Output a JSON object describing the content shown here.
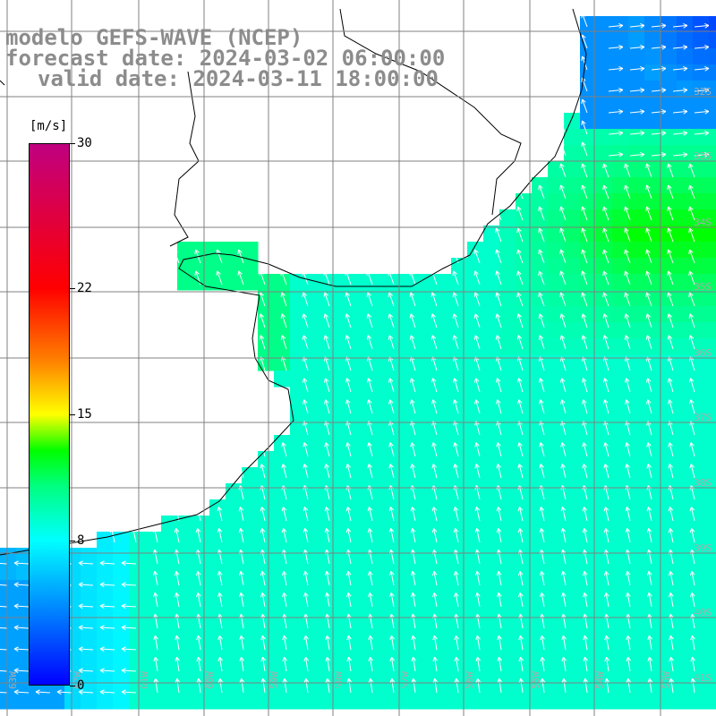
{
  "title": {
    "line1": "modelo GEFS-WAVE (NCEP)",
    "line2": "forecast date: 2024-03-02 06:00:00",
    "line3": "valid date: 2024-03-11 18:00:00"
  },
  "colorbar": {
    "unit": "[m/s]",
    "min": 0,
    "max": 30,
    "ticks": [
      {
        "label": "30",
        "value": 30
      },
      {
        "label": "22",
        "value": 22
      },
      {
        "label": "15",
        "value": 15
      },
      {
        "label": "8",
        "value": 8
      },
      {
        "label": "0",
        "value": 0
      }
    ],
    "stops": [
      {
        "value": 0,
        "color": "#0000ff"
      },
      {
        "value": 4,
        "color": "#0080ff"
      },
      {
        "value": 8,
        "color": "#00ffff"
      },
      {
        "value": 11,
        "color": "#00ff80"
      },
      {
        "value": 13,
        "color": "#00ff00"
      },
      {
        "value": 15,
        "color": "#ffff00"
      },
      {
        "value": 18,
        "color": "#ff8000"
      },
      {
        "value": 22,
        "color": "#ff0000"
      },
      {
        "value": 30,
        "color": "#c00080"
      }
    ]
  },
  "map": {
    "latitude_labels": [
      "32S",
      "33S",
      "34S",
      "35S",
      "36S",
      "37S",
      "38S",
      "39S",
      "40S",
      "41S"
    ],
    "longitude_labels": [
      "63W",
      "62W",
      "61W",
      "60W",
      "59W",
      "58W",
      "57W",
      "56W",
      "55W",
      "54W",
      "53W"
    ],
    "grid_color": "#808080",
    "coast_color": "#000000",
    "arrow_color": "#ffffff",
    "label_color": "#aaaaaa"
  }
}
